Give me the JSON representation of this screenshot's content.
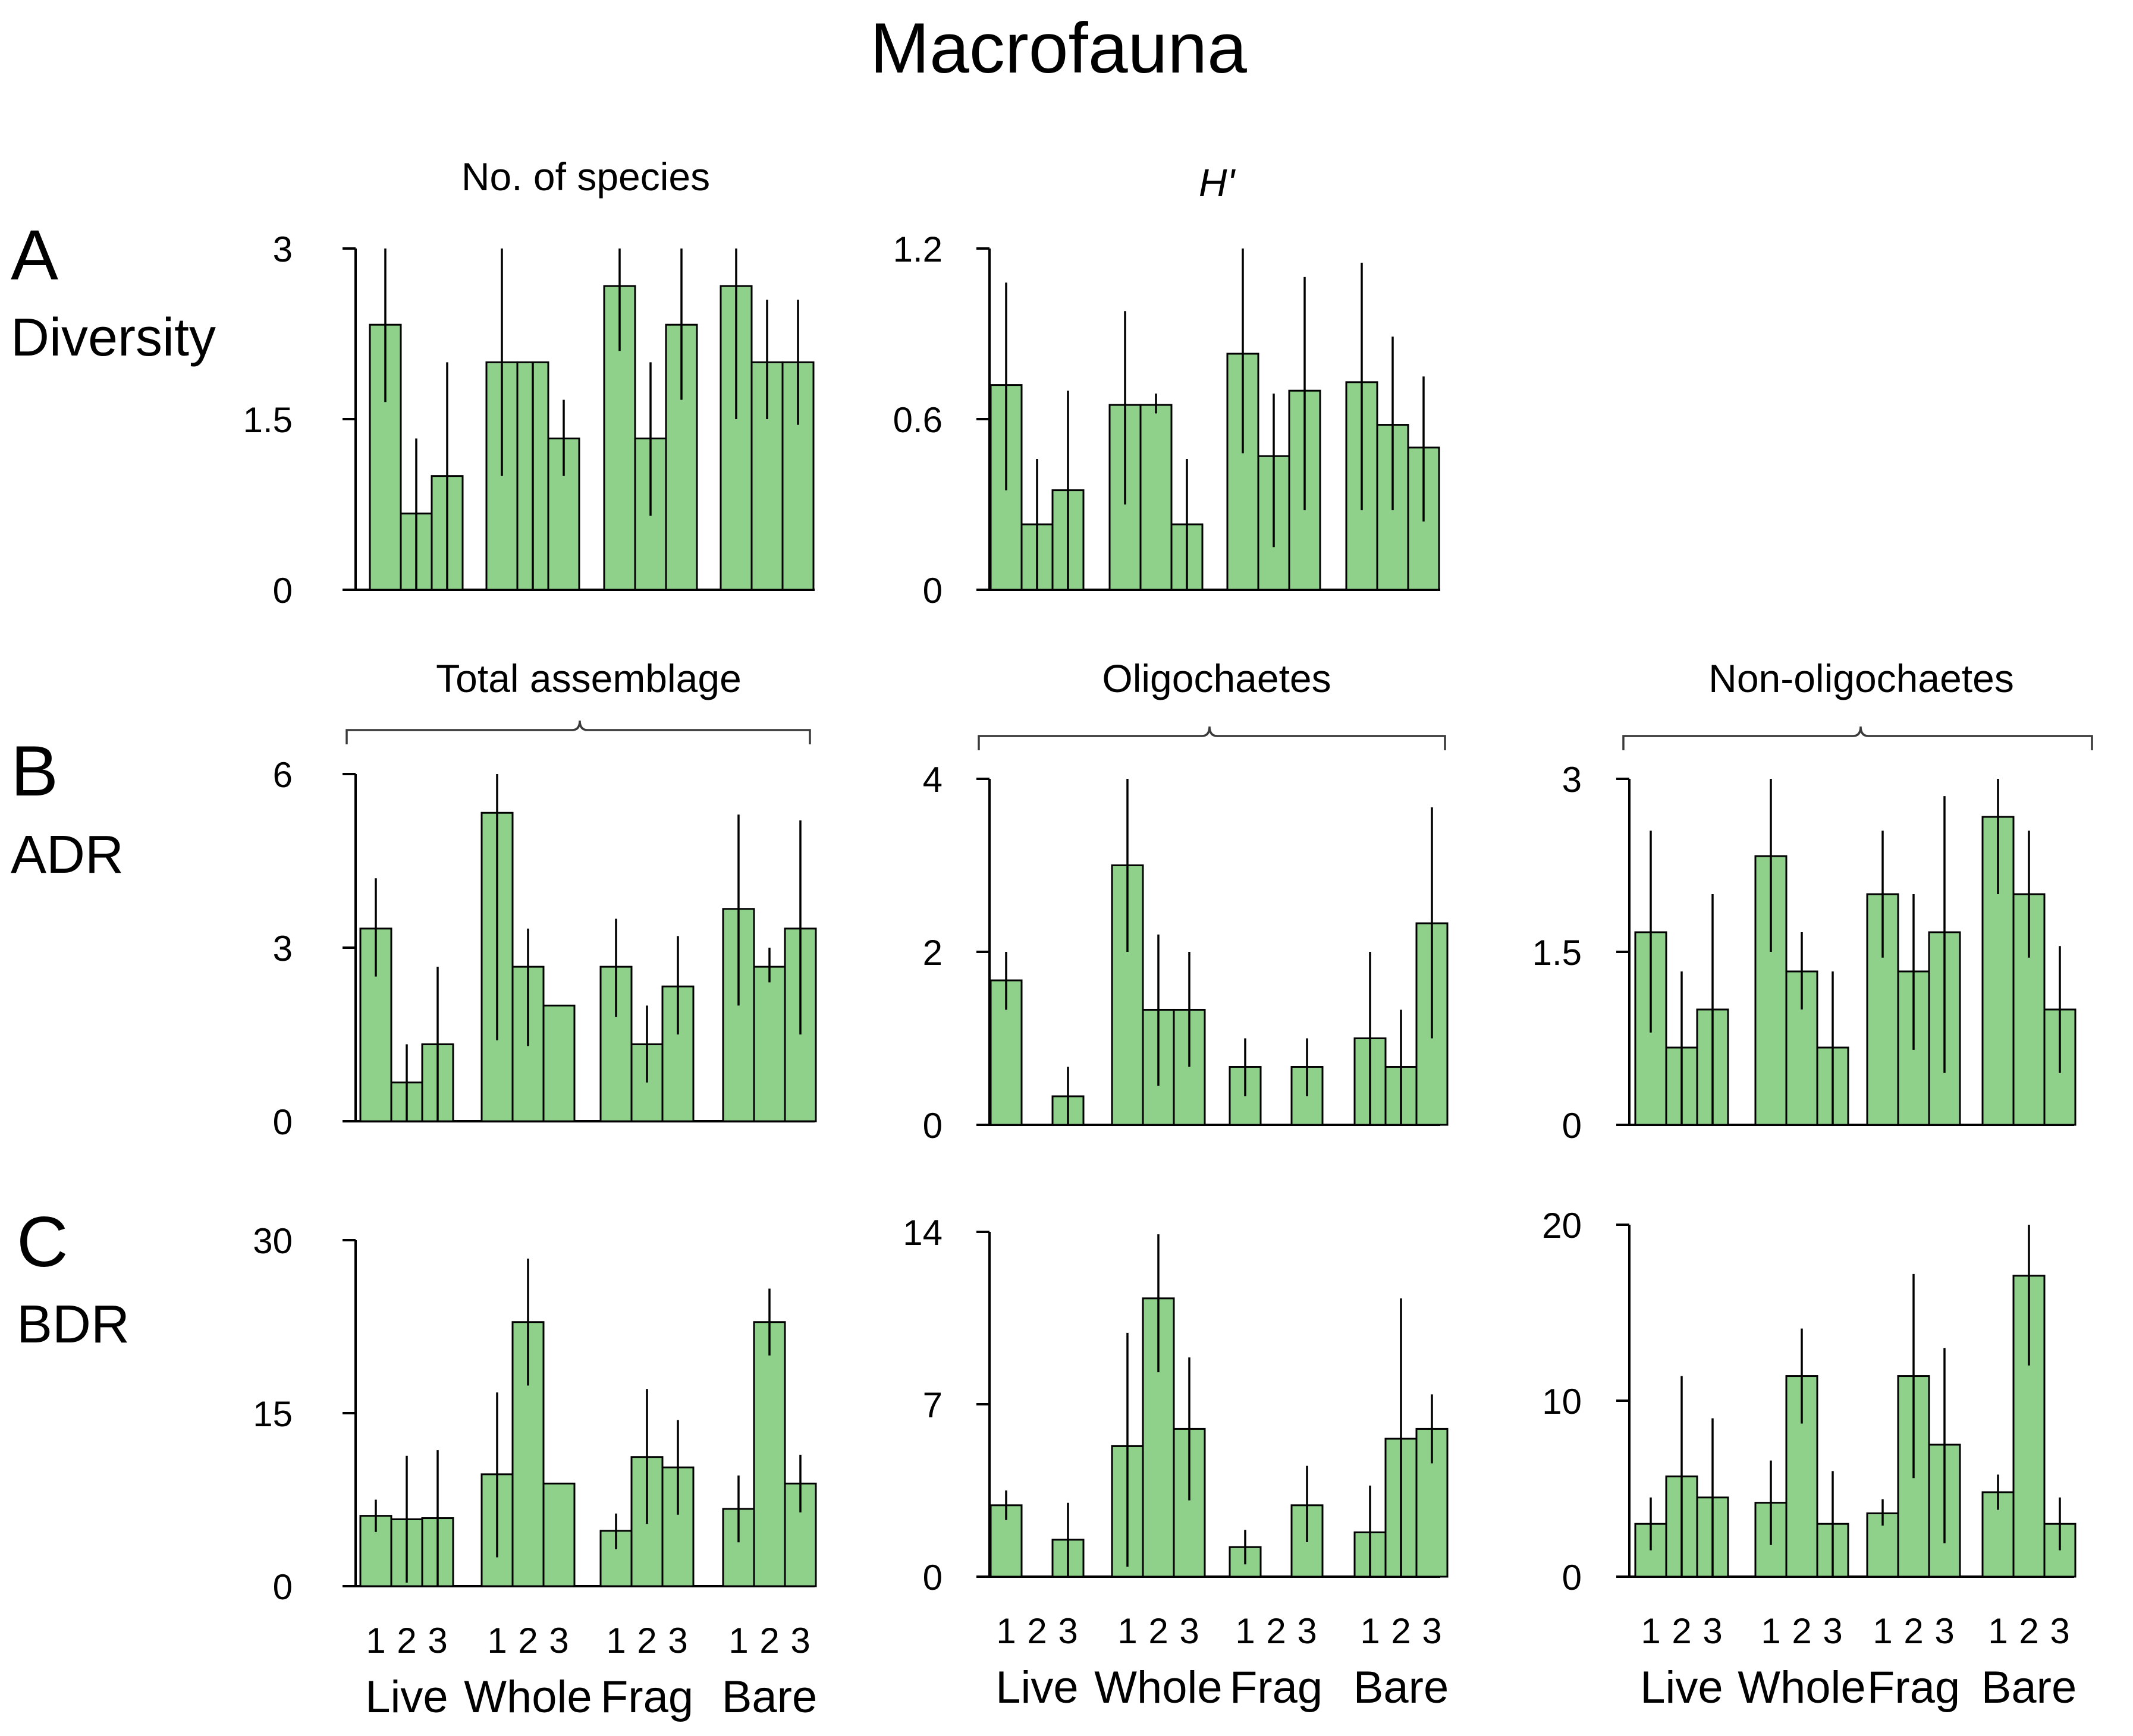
{
  "title": "Macrofauna",
  "colors": {
    "bar_fill": "#8fd18a",
    "bar_stroke": "#000000",
    "error": "#000000"
  },
  "rows": [
    {
      "letter": "A",
      "label": "Diversity"
    },
    {
      "letter": "B",
      "label": "ADR"
    },
    {
      "letter": "C",
      "label": "BDR"
    }
  ],
  "brace_labels": {
    "total": "Total assemblage",
    "olig": "Oligochaetes",
    "nonolig": "Non-oligochaetes"
  },
  "x_axis": {
    "groups": [
      "Live",
      "Whole",
      "Frag",
      "Bare"
    ],
    "subcategories": [
      "1",
      "2",
      "3"
    ]
  },
  "chart_data": [
    {
      "id": "a1",
      "type": "bar",
      "title": "No. of species",
      "title_italic": false,
      "ylim": [
        0,
        3
      ],
      "yticks": [
        "0",
        "1.5",
        "3"
      ],
      "categories": [
        "Live 1",
        "Live 2",
        "Live 3",
        "Whole 1",
        "Whole 2",
        "Whole 3",
        "Frag 1",
        "Frag 2",
        "Frag 3",
        "Bare 1",
        "Bare 2",
        "Bare 3"
      ],
      "values": [
        2.33,
        0.67,
        1.0,
        2.0,
        2.0,
        1.33,
        2.67,
        1.33,
        2.33,
        2.67,
        2.0,
        2.0
      ],
      "err_lo": [
        1.65,
        0.0,
        0.0,
        1.0,
        0.0,
        1.0,
        2.1,
        0.65,
        1.67,
        1.5,
        1.5,
        1.45
      ],
      "err_hi": [
        3.0,
        1.33,
        2.0,
        3.0,
        2.0,
        1.67,
        3.0,
        2.0,
        3.0,
        3.0,
        2.55,
        2.55
      ]
    },
    {
      "id": "a2",
      "type": "bar",
      "title": "H'",
      "title_italic": true,
      "ylim": [
        0,
        1.2
      ],
      "yticks": [
        "0",
        "0.6",
        "1.2"
      ],
      "categories": [
        "Live 1",
        "Live 2",
        "Live 3",
        "Whole 1",
        "Whole 2",
        "Whole 3",
        "Frag 1",
        "Frag 2",
        "Frag 3",
        "Bare 1",
        "Bare 2",
        "Bare 3"
      ],
      "values": [
        0.72,
        0.23,
        0.35,
        0.65,
        0.65,
        0.23,
        0.83,
        0.47,
        0.7,
        0.73,
        0.58,
        0.5
      ],
      "err_lo": [
        0.35,
        0.0,
        0.0,
        0.3,
        0.62,
        0.0,
        0.48,
        0.15,
        0.28,
        0.28,
        0.28,
        0.24
      ],
      "err_hi": [
        1.08,
        0.46,
        0.7,
        0.98,
        0.69,
        0.46,
        1.2,
        0.69,
        1.1,
        1.15,
        0.89,
        0.75
      ]
    },
    {
      "id": "b1",
      "type": "bar",
      "title": "",
      "ylim": [
        0,
        6
      ],
      "yticks": [
        "0",
        "3",
        "6"
      ],
      "categories": [
        "Live 1",
        "Live 2",
        "Live 3",
        "Whole 1",
        "Whole 2",
        "Whole 3",
        "Frag 1",
        "Frag 2",
        "Frag 3",
        "Bare 1",
        "Bare 2",
        "Bare 3"
      ],
      "values": [
        3.33,
        0.67,
        1.33,
        5.33,
        2.67,
        2.0,
        2.67,
        1.33,
        2.33,
        3.67,
        2.67,
        3.33
      ],
      "err_lo": [
        2.5,
        0.0,
        0.0,
        1.4,
        1.3,
        2.0,
        1.8,
        0.67,
        1.5,
        2.0,
        2.4,
        1.5
      ],
      "err_hi": [
        4.2,
        1.33,
        2.67,
        6.0,
        3.33,
        2.0,
        3.5,
        2.0,
        3.2,
        5.3,
        3.0,
        5.2
      ]
    },
    {
      "id": "b2",
      "type": "bar",
      "title": "",
      "ylim": [
        0,
        4
      ],
      "yticks": [
        "0",
        "2",
        "4"
      ],
      "categories": [
        "Live 1",
        "Live 2",
        "Live 3",
        "Whole 1",
        "Whole 2",
        "Whole 3",
        "Frag 1",
        "Frag 2",
        "Frag 3",
        "Bare 1",
        "Bare 2",
        "Bare 3"
      ],
      "values": [
        1.67,
        0.0,
        0.33,
        3.0,
        1.33,
        1.33,
        0.67,
        0.0,
        0.67,
        1.0,
        0.67,
        2.33
      ],
      "err_lo": [
        1.33,
        0.0,
        0.0,
        2.0,
        0.45,
        0.67,
        0.33,
        0.0,
        0.33,
        0.0,
        0.0,
        1.0
      ],
      "err_hi": [
        2.0,
        0.0,
        0.67,
        4.0,
        2.2,
        2.0,
        1.0,
        0.0,
        1.0,
        2.0,
        1.33,
        3.67
      ]
    },
    {
      "id": "b3",
      "type": "bar",
      "title": "",
      "ylim": [
        0,
        3
      ],
      "yticks": [
        "0",
        "1.5",
        "3"
      ],
      "categories": [
        "Live 1",
        "Live 2",
        "Live 3",
        "Whole 1",
        "Whole 2",
        "Whole 3",
        "Frag 1",
        "Frag 2",
        "Frag 3",
        "Bare 1",
        "Bare 2",
        "Bare 3"
      ],
      "values": [
        1.67,
        0.67,
        1.0,
        2.33,
        1.33,
        0.67,
        2.0,
        1.33,
        1.67,
        2.67,
        2.0,
        1.0
      ],
      "err_lo": [
        0.8,
        0.0,
        0.0,
        1.5,
        1.0,
        0.0,
        1.45,
        0.65,
        0.45,
        2.0,
        1.45,
        0.45
      ],
      "err_hi": [
        2.55,
        1.33,
        2.0,
        3.0,
        1.67,
        1.33,
        2.55,
        2.0,
        2.85,
        3.0,
        2.55,
        1.55
      ]
    },
    {
      "id": "c1",
      "type": "bar",
      "title": "",
      "ylim": [
        0,
        30
      ],
      "yticks": [
        "0",
        "15",
        "30"
      ],
      "categories": [
        "Live 1",
        "Live 2",
        "Live 3",
        "Whole 1",
        "Whole 2",
        "Whole 3",
        "Frag 1",
        "Frag 2",
        "Frag 3",
        "Bare 1",
        "Bare 2",
        "Bare 3"
      ],
      "values": [
        6.1,
        5.8,
        5.9,
        9.7,
        22.9,
        8.9,
        4.8,
        11.2,
        10.3,
        6.7,
        22.9,
        8.9
      ],
      "err_lo": [
        4.7,
        0.3,
        0.0,
        2.5,
        17.4,
        8.9,
        3.2,
        5.4,
        6.2,
        3.8,
        20.0,
        6.4
      ],
      "err_hi": [
        7.5,
        11.3,
        11.8,
        16.8,
        28.4,
        8.9,
        6.3,
        17.1,
        14.4,
        9.6,
        25.8,
        11.4
      ]
    },
    {
      "id": "c2",
      "type": "bar",
      "title": "",
      "ylim": [
        0,
        14
      ],
      "yticks": [
        "0",
        "7",
        "14"
      ],
      "categories": [
        "Live 1",
        "Live 2",
        "Live 3",
        "Whole 1",
        "Whole 2",
        "Whole 3",
        "Frag 1",
        "Frag 2",
        "Frag 3",
        "Bare 1",
        "Bare 2",
        "Bare 3"
      ],
      "values": [
        2.9,
        0.0,
        1.5,
        5.3,
        11.3,
        6.0,
        1.2,
        0.0,
        2.9,
        1.8,
        5.6,
        6.0
      ],
      "err_lo": [
        2.3,
        0.0,
        0.0,
        0.4,
        8.3,
        3.1,
        0.5,
        0.0,
        1.4,
        0.0,
        0.0,
        4.6
      ],
      "err_hi": [
        3.5,
        0.0,
        3.0,
        9.9,
        13.9,
        8.9,
        1.9,
        0.0,
        4.5,
        3.7,
        11.3,
        7.4
      ]
    },
    {
      "id": "c3",
      "type": "bar",
      "title": "",
      "ylim": [
        0,
        20
      ],
      "yticks": [
        "0",
        "10",
        "20"
      ],
      "categories": [
        "Live 1",
        "Live 2",
        "Live 3",
        "Whole 1",
        "Whole 2",
        "Whole 3",
        "Frag 1",
        "Frag 2",
        "Frag 3",
        "Bare 1",
        "Bare 2",
        "Bare 3"
      ],
      "values": [
        3.0,
        5.7,
        4.5,
        4.2,
        11.4,
        3.0,
        3.6,
        11.4,
        7.5,
        4.8,
        17.1,
        3.0
      ],
      "err_lo": [
        1.5,
        0.0,
        0.0,
        1.8,
        8.7,
        0.0,
        2.9,
        5.6,
        1.9,
        3.8,
        12.0,
        1.5
      ],
      "err_hi": [
        4.5,
        11.4,
        9.0,
        6.6,
        14.1,
        6.0,
        4.4,
        17.2,
        13.0,
        5.8,
        20.0,
        4.5
      ]
    }
  ]
}
